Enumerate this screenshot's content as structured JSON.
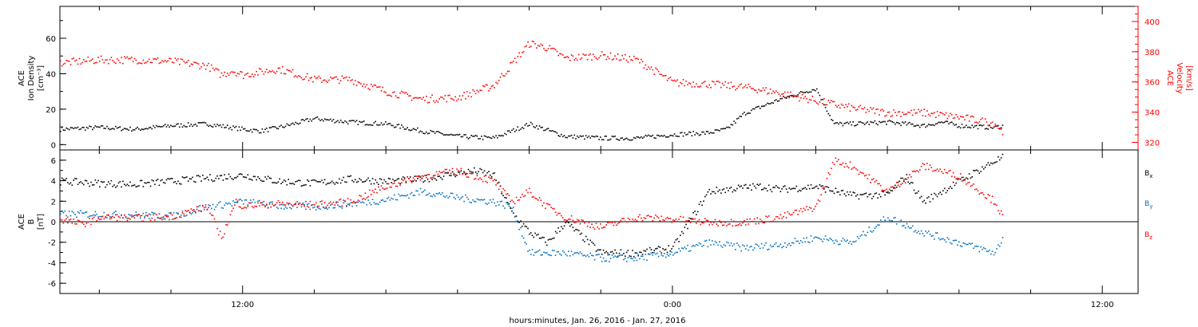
{
  "chart_data": [
    {
      "type": "scatter",
      "panel": "ion-density-velocity",
      "title": "",
      "xlabel": "hours:minutes, Jan. 26, 2016 - Jan. 27, 2016",
      "x_ticks": [
        "12:00",
        "0:00",
        "12:00"
      ],
      "x_tick_hours": [
        12,
        24,
        36
      ],
      "xlim": [
        6.9,
        37.0
      ],
      "left_axis": {
        "label_lines": [
          "ACE",
          "Ion Density",
          "[cm⁻³]"
        ],
        "ticks": [
          "0",
          "20",
          "40",
          "60"
        ],
        "tick_values": [
          0,
          20,
          40,
          60
        ],
        "ylim": [
          -3,
          78
        ]
      },
      "right_axis": {
        "label_lines": [
          "ACE",
          "Velocity",
          "[km/s]"
        ],
        "ticks": [
          "320",
          "340",
          "360",
          "380",
          "400"
        ],
        "tick_values": [
          320,
          340,
          360,
          380,
          400
        ],
        "ylim": [
          315,
          410
        ],
        "color": "#ff0000"
      },
      "series": [
        {
          "color": "#000000",
          "axis": "left",
          "x": [
            6.9,
            8,
            9,
            10,
            11,
            12,
            12.5,
            13,
            14,
            15,
            16,
            17,
            18,
            19,
            20,
            21,
            22,
            23,
            23.5,
            24,
            25,
            25.5,
            26,
            27,
            28,
            28.5,
            29,
            30,
            31,
            31.5,
            32,
            33,
            33.2
          ],
          "y": [
            9,
            10,
            9,
            11,
            12,
            9,
            8,
            10,
            15,
            13,
            12,
            8,
            5,
            4,
            12,
            5,
            4,
            4,
            5,
            6,
            7,
            9,
            18,
            26,
            32,
            12,
            12,
            13,
            11,
            13,
            11,
            10,
            11
          ]
        },
        {
          "color": "#ff0000",
          "axis": "right",
          "x": [
            6.9,
            8,
            9,
            10,
            11,
            11.4,
            11.7,
            12,
            13,
            14,
            15,
            16,
            17,
            18,
            19,
            20,
            20.5,
            21,
            22,
            23,
            24,
            25,
            26,
            27,
            28,
            29,
            30,
            31,
            32,
            33,
            33.2
          ],
          "y": [
            373,
            375,
            375,
            374,
            371,
            365,
            368,
            365,
            369,
            362,
            362,
            354,
            349,
            350,
            358,
            386,
            383,
            376,
            378,
            375,
            360,
            359,
            357,
            353,
            348,
            343,
            340,
            340,
            337,
            333,
            327
          ]
        }
      ]
    },
    {
      "type": "scatter",
      "panel": "magnetic-field",
      "title": "",
      "xlabel": "hours:minutes, Jan. 26, 2016 - Jan. 27, 2016",
      "xlim": [
        6.9,
        37.0
      ],
      "left_axis": {
        "label_lines": [
          "ACE",
          "B",
          "[nT]"
        ],
        "ticks": [
          "-6",
          "-4",
          "-2",
          "0",
          "2",
          "4",
          "6"
        ],
        "tick_values": [
          -6,
          -4,
          -2,
          0,
          2,
          4,
          6
        ],
        "ylim": [
          -7,
          7
        ]
      },
      "zero_line": true,
      "legend": [
        "Bx",
        "By",
        "Bz"
      ],
      "series": [
        {
          "name": "Bx",
          "color": "#000000",
          "x": [
            6.9,
            8,
            9,
            10,
            11,
            12,
            13,
            14,
            15,
            16,
            17,
            18,
            18.5,
            19,
            19.5,
            20,
            20.5,
            21,
            22,
            23,
            24,
            25,
            26,
            26.5,
            27,
            28,
            29,
            30,
            30.5,
            31,
            32,
            33,
            33.2
          ],
          "y": [
            4,
            3.8,
            3.7,
            4,
            4.3,
            4.6,
            4,
            3.8,
            4.2,
            4,
            4.2,
            4.8,
            5,
            4.6,
            1,
            -1,
            -2,
            0,
            -3,
            -3,
            -2.5,
            3,
            3.4,
            3.5,
            3.2,
            3.5,
            2.6,
            2.7,
            4.5,
            2,
            4,
            6,
            6.3
          ]
        },
        {
          "name": "By",
          "color": "#0070c0",
          "x": [
            6.9,
            8,
            9,
            10,
            11,
            12,
            13,
            14,
            15,
            16,
            17,
            18,
            19,
            19.5,
            20,
            21,
            22,
            23,
            24,
            25,
            26,
            27,
            28,
            29,
            30,
            31,
            32,
            33,
            33.2
          ],
          "y": [
            0.8,
            0.8,
            0.7,
            0.6,
            1.5,
            2,
            1.6,
            1.5,
            1.8,
            2.2,
            3,
            2.4,
            2,
            1.5,
            -3,
            -3,
            -3.5,
            -3.5,
            -3,
            -2,
            -2.5,
            -2.2,
            -1.5,
            -2,
            0.5,
            -1,
            -2,
            -3,
            -1.5
          ]
        },
        {
          "name": "Bz",
          "color": "#ff0000",
          "x": [
            6.9,
            7.5,
            8,
            9,
            10,
            11,
            11.4,
            11.8,
            12,
            13,
            14,
            15,
            16,
            17,
            18,
            19,
            19.5,
            20,
            20.5,
            21,
            22,
            23,
            24,
            25,
            26,
            27,
            28,
            28.5,
            29,
            30,
            31,
            32,
            33,
            33.2
          ],
          "y": [
            0.3,
            -0.2,
            0.5,
            0.4,
            0.6,
            1.5,
            -1.5,
            2,
            1.6,
            1.8,
            1.7,
            2,
            3.5,
            4.5,
            5,
            4,
            2,
            3,
            1.5,
            0.5,
            -0.5,
            0.5,
            0.3,
            0,
            0,
            0.5,
            1.5,
            6,
            5.5,
            3,
            5.5,
            4.5,
            2,
            0.5
          ]
        }
      ]
    }
  ]
}
